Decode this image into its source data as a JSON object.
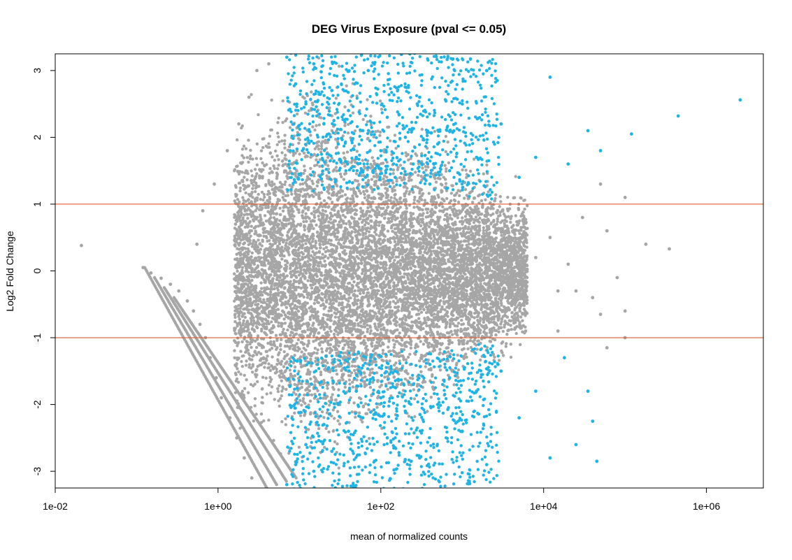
{
  "chart_data": {
    "type": "scatter",
    "title": "DEG Virus Exposure  (pval <= 0.05)",
    "xlabel": "mean of normalized counts",
    "ylabel": "Log2 Fold Change",
    "x_scale": "log10",
    "xlim": [
      0.01,
      5000000
    ],
    "ylim": [
      -3.25,
      3.25
    ],
    "x_ticks": [
      {
        "value": 0.01,
        "label": "1e-02"
      },
      {
        "value": 1,
        "label": "1e+00"
      },
      {
        "value": 100,
        "label": "1e+02"
      },
      {
        "value": 10000,
        "label": "1e+04"
      },
      {
        "value": 1000000,
        "label": "1e+06"
      }
    ],
    "y_ticks": [
      {
        "value": -3,
        "label": "-3"
      },
      {
        "value": -2,
        "label": "-2"
      },
      {
        "value": -1,
        "label": "-1"
      },
      {
        "value": 0,
        "label": "0"
      },
      {
        "value": 1,
        "label": "1"
      },
      {
        "value": 2,
        "label": "2"
      },
      {
        "value": 3,
        "label": "3"
      }
    ],
    "threshold_lines": [
      1,
      -1
    ],
    "colors": {
      "not_significant": "#A6A6A6",
      "significant": "#1FB4E6",
      "threshold": "#E0582A",
      "axis": "#000000"
    },
    "series": [
      {
        "color": "#A6A6A6",
        "points": [
          [
            0.021,
            0.38
          ],
          [
            0.12,
            0.05
          ],
          [
            0.15,
            -0.03
          ],
          [
            0.2,
            -0.11
          ],
          [
            0.26,
            -0.2
          ],
          [
            0.33,
            -0.3
          ],
          [
            0.42,
            -0.45
          ],
          [
            0.5,
            -0.6
          ],
          [
            0.6,
            -0.8
          ],
          [
            0.7,
            -1.0
          ],
          [
            0.8,
            -1.3
          ],
          [
            0.95,
            -1.6
          ],
          [
            1.1,
            -1.9
          ],
          [
            1.4,
            -2.2
          ],
          [
            1.7,
            -2.5
          ],
          [
            2.1,
            -2.8
          ],
          [
            2.6,
            -3.1
          ],
          [
            0.55,
            0.4
          ],
          [
            0.65,
            0.9
          ],
          [
            0.9,
            1.3
          ],
          [
            1.3,
            1.8
          ],
          [
            1.8,
            2.2
          ],
          [
            2.4,
            2.6
          ],
          [
            3.0,
            3.0
          ],
          [
            4.2,
            3.1
          ],
          [
            2000,
            0.9
          ],
          [
            3000,
            0.6
          ],
          [
            5000,
            0.4
          ],
          [
            8000,
            0.2
          ],
          [
            12000,
            0.5
          ],
          [
            15000,
            -0.3
          ],
          [
            20000,
            0.1
          ],
          [
            30000,
            0.8
          ],
          [
            40000,
            -0.4
          ],
          [
            50000,
            1.3
          ],
          [
            60000,
            0.6
          ],
          [
            80000,
            -0.1
          ],
          [
            100000,
            1.1
          ],
          [
            100000,
            -0.6
          ],
          [
            180000,
            0.4
          ],
          [
            350000,
            0.33
          ],
          [
            50000,
            -0.65
          ],
          [
            60000,
            -1.15
          ],
          [
            100000,
            -1.0
          ],
          [
            15000,
            -0.9
          ],
          [
            3000,
            -0.85
          ],
          [
            1200,
            -0.95
          ],
          [
            2500,
            1.05
          ],
          [
            6000,
            -0.9
          ],
          [
            25000,
            -0.3
          ]
        ]
      },
      {
        "color": "#1FB4E6",
        "points": [
          [
            7,
            3.2
          ],
          [
            9,
            2.8
          ],
          [
            12,
            2.5
          ],
          [
            15,
            3.1
          ],
          [
            20,
            2.2
          ],
          [
            25,
            2.7
          ],
          [
            30,
            1.9
          ],
          [
            40,
            2.4
          ],
          [
            50,
            1.7
          ],
          [
            60,
            2.1
          ],
          [
            70,
            3.0
          ],
          [
            80,
            1.5
          ],
          [
            100,
            1.8
          ],
          [
            120,
            2.3
          ],
          [
            150,
            1.4
          ],
          [
            200,
            2.0
          ],
          [
            250,
            1.6
          ],
          [
            300,
            2.6
          ],
          [
            400,
            1.3
          ],
          [
            500,
            1.9
          ],
          [
            700,
            1.5
          ],
          [
            1000,
            2.5
          ],
          [
            1500,
            1.7
          ],
          [
            2000,
            3.0
          ],
          [
            3000,
            2.2
          ],
          [
            5000,
            1.4
          ],
          [
            8000,
            1.7
          ],
          [
            12000,
            2.9
          ],
          [
            20000,
            1.6
          ],
          [
            35000,
            2.1
          ],
          [
            50000,
            1.8
          ],
          [
            120000,
            2.05
          ],
          [
            450000,
            2.32
          ],
          [
            2600000,
            2.56
          ],
          [
            7,
            -3.2
          ],
          [
            9,
            -2.9
          ],
          [
            12,
            -2.6
          ],
          [
            15,
            -3.0
          ],
          [
            20,
            -2.3
          ],
          [
            25,
            -2.7
          ],
          [
            30,
            -2.0
          ],
          [
            40,
            -2.4
          ],
          [
            50,
            -1.8
          ],
          [
            60,
            -2.2
          ],
          [
            80,
            -1.6
          ],
          [
            100,
            -1.9
          ],
          [
            120,
            -2.5
          ],
          [
            150,
            -1.5
          ],
          [
            200,
            -2.1
          ],
          [
            250,
            -1.7
          ],
          [
            300,
            -2.8
          ],
          [
            400,
            -1.4
          ],
          [
            500,
            -2.0
          ],
          [
            700,
            -1.6
          ],
          [
            1000,
            -2.4
          ],
          [
            1500,
            -1.8
          ],
          [
            2000,
            -2.9
          ],
          [
            3000,
            -1.5
          ],
          [
            5000,
            -2.2
          ],
          [
            8000,
            -1.8
          ],
          [
            12000,
            -2.8
          ],
          [
            18000,
            -1.3
          ],
          [
            25000,
            -2.6
          ],
          [
            35000,
            -1.8
          ],
          [
            45000,
            -2.85
          ],
          [
            40000,
            -2.25
          ]
        ]
      }
    ]
  }
}
